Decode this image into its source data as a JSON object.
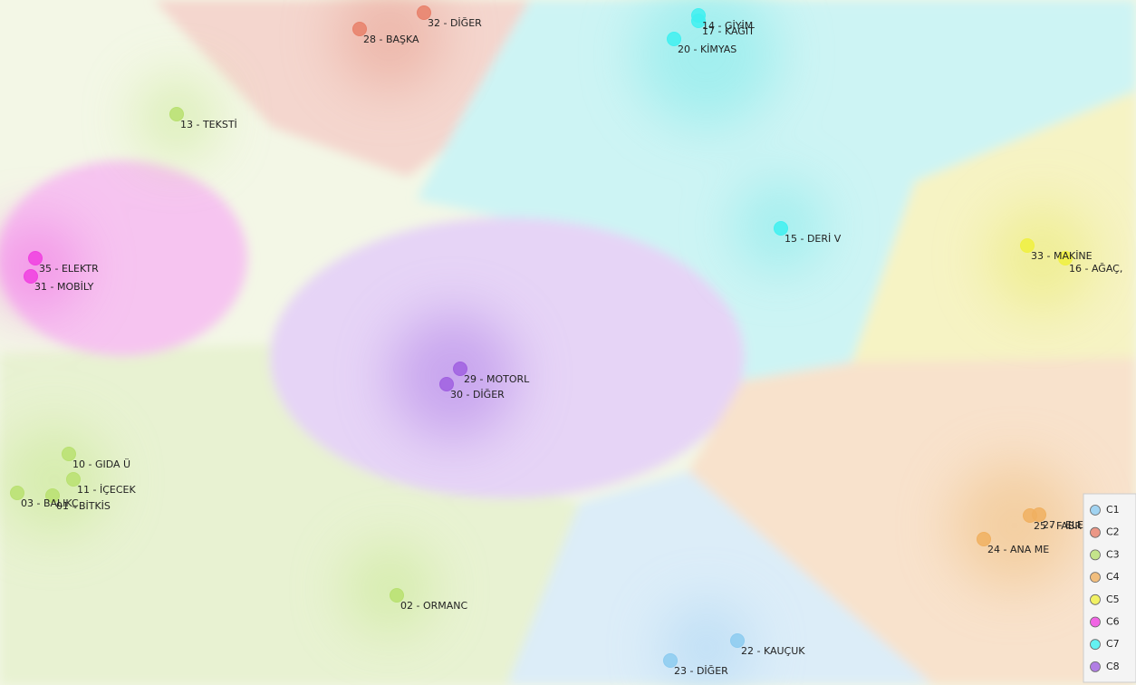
{
  "chart_data": {
    "type": "cluster-map",
    "legend": [
      {
        "name": "C1",
        "color": "#8ccbf0"
      },
      {
        "name": "C2",
        "color": "#e8806a"
      },
      {
        "name": "C3",
        "color": "#b8e070"
      },
      {
        "name": "C4",
        "color": "#f0b060"
      },
      {
        "name": "C5",
        "color": "#f0f040"
      },
      {
        "name": "C6",
        "color": "#f040e0"
      },
      {
        "name": "C7",
        "color": "#40f0f0"
      },
      {
        "name": "C8",
        "color": "#a060e0"
      }
    ],
    "points": [
      {
        "label": "14 - GİYİM",
        "cluster": "C7"
      },
      {
        "label": "17 - KAĞIT",
        "cluster": "C7"
      },
      {
        "label": "20 - KİMYAS",
        "cluster": "C7"
      },
      {
        "label": "15 - DERİ V",
        "cluster": "C7"
      },
      {
        "label": "32 - DİĞER",
        "cluster": "C2"
      },
      {
        "label": "28 - BAŞKA",
        "cluster": "C2"
      },
      {
        "label": "13 - TEKSTİ",
        "cluster": "C3"
      },
      {
        "label": "35 - ELEKTR",
        "cluster": "C6"
      },
      {
        "label": "31 - MOBİLY",
        "cluster": "C6"
      },
      {
        "label": "29 - MOTORL",
        "cluster": "C8"
      },
      {
        "label": "30 - DİĞER",
        "cluster": "C8"
      },
      {
        "label": "33 - MAKİNE",
        "cluster": "C5"
      },
      {
        "label": "16 - AĞAÇ,",
        "cluster": "C5"
      },
      {
        "label": "10 - GIDA Ü",
        "cluster": "C3"
      },
      {
        "label": "11 - İÇECEK",
        "cluster": "C3"
      },
      {
        "label": "03 - BALIKÇ",
        "cluster": "C3"
      },
      {
        "label": "01 - BİTKİS",
        "cluster": "C3"
      },
      {
        "label": "02 - ORMANC",
        "cluster": "C3"
      },
      {
        "label": "25 - FABR",
        "cluster": "C4"
      },
      {
        "label": "27 - ELEKTR",
        "cluster": "C4"
      },
      {
        "label": "24 - ANA ME",
        "cluster": "C4"
      },
      {
        "label": "22 - KAUÇUK",
        "cluster": "C1"
      },
      {
        "label": "23 - DİĞER",
        "cluster": "C1"
      }
    ]
  }
}
